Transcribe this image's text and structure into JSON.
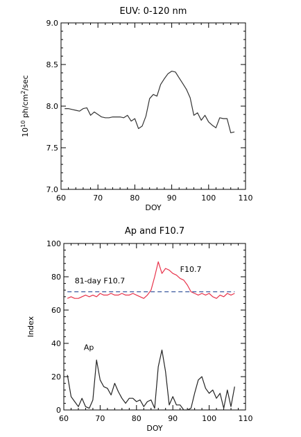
{
  "chart_data": [
    {
      "type": "line",
      "title": "EUV: 0-120 nm",
      "xlabel": "DOY",
      "ylabel_parts": [
        "10",
        "10",
        " ph/cm",
        "2",
        "/sec"
      ],
      "xlim": [
        60,
        110
      ],
      "ylim": [
        7.0,
        9.0
      ],
      "xticks": [
        60,
        70,
        80,
        90,
        100,
        110
      ],
      "yticks": [
        7.0,
        7.5,
        8.0,
        8.5,
        9.0
      ],
      "ytick_labels": [
        "7.0",
        "7.5",
        "8.0",
        "8.5",
        "9.0"
      ],
      "series": [
        {
          "color": "#333333",
          "x": [
            61,
            62,
            63,
            64,
            65,
            66,
            67,
            68,
            69,
            70,
            71,
            72,
            73,
            74,
            75,
            76,
            77,
            78,
            79,
            80,
            81,
            82,
            83,
            84,
            85,
            86,
            87,
            88,
            89,
            90,
            91,
            92,
            93,
            94,
            95,
            96,
            97,
            98,
            99,
            100,
            101,
            102,
            103,
            104,
            105,
            106,
            107
          ],
          "y": [
            7.97,
            7.97,
            7.96,
            7.95,
            7.94,
            7.97,
            7.98,
            7.89,
            7.93,
            7.9,
            7.87,
            7.86,
            7.86,
            7.87,
            7.87,
            7.87,
            7.86,
            7.89,
            7.82,
            7.85,
            7.73,
            7.76,
            7.88,
            8.09,
            8.14,
            8.12,
            8.26,
            8.33,
            8.39,
            8.42,
            8.41,
            8.34,
            8.27,
            8.2,
            8.1,
            7.89,
            7.92,
            7.83,
            7.89,
            7.81,
            7.77,
            7.74,
            7.86,
            7.85,
            7.85,
            7.68,
            7.69
          ]
        }
      ]
    },
    {
      "type": "line",
      "title": "Ap and F10.7",
      "xlabel": "DOY",
      "ylabel": "Index",
      "xlim": [
        60,
        110
      ],
      "ylim": [
        0,
        100
      ],
      "xticks": [
        60,
        70,
        80,
        90,
        100,
        110
      ],
      "yticks": [
        0,
        20,
        40,
        60,
        80,
        100
      ],
      "ytick_labels": [
        "0",
        "20",
        "40",
        "60",
        "80",
        "100"
      ],
      "annotations": [
        {
          "text": "F10.7",
          "x": 92,
          "y": 83,
          "color": "#e8324a"
        },
        {
          "text": "81-day F10.7",
          "x": 63,
          "y": 76,
          "color": "#3b5aa0"
        },
        {
          "text": "Ap",
          "x": 65.5,
          "y": 36,
          "color": "#000000"
        }
      ],
      "series": [
        {
          "color": "#e8324a",
          "x": [
            61,
            62,
            63,
            64,
            65,
            66,
            67,
            68,
            69,
            70,
            71,
            72,
            73,
            74,
            75,
            76,
            77,
            78,
            79,
            80,
            81,
            82,
            83,
            84,
            85,
            86,
            87,
            88,
            89,
            90,
            91,
            92,
            93,
            94,
            95,
            96,
            97,
            98,
            99,
            100,
            101,
            102,
            103,
            104,
            105,
            106,
            107
          ],
          "y": [
            67,
            68,
            67,
            67,
            68,
            69,
            68,
            69,
            68,
            70,
            69,
            69,
            70,
            69,
            69,
            70,
            69,
            69,
            70,
            69,
            68,
            67,
            69,
            72,
            80,
            89,
            82,
            85,
            84,
            82,
            81,
            79,
            78,
            75,
            71,
            70,
            69,
            70,
            69,
            70,
            68,
            67,
            69,
            68,
            70,
            69,
            70
          ]
        },
        {
          "color": "#3b5aa0",
          "dashed": true,
          "x": [
            61,
            107
          ],
          "y": [
            71,
            71
          ]
        },
        {
          "color": "#222222",
          "x": [
            61,
            62,
            63,
            64,
            65,
            66,
            67,
            68,
            69,
            70,
            71,
            72,
            73,
            74,
            75,
            76,
            77,
            78,
            79,
            80,
            81,
            82,
            83,
            84,
            85,
            86,
            87,
            88,
            89,
            90,
            91,
            92,
            93,
            94,
            95,
            96,
            97,
            98,
            99,
            100,
            101,
            102,
            103,
            104,
            105,
            106,
            107
          ],
          "y": [
            21,
            8,
            5,
            2,
            7,
            2,
            1,
            6,
            30,
            18,
            14,
            13,
            9,
            16,
            11,
            7,
            4,
            7,
            7,
            5,
            6,
            2,
            5,
            6,
            1,
            26,
            36,
            23,
            3,
            8,
            3,
            3,
            0,
            0,
            1,
            10,
            18,
            20,
            13,
            10,
            12,
            7,
            10,
            1,
            12,
            2,
            14
          ]
        }
      ]
    }
  ]
}
